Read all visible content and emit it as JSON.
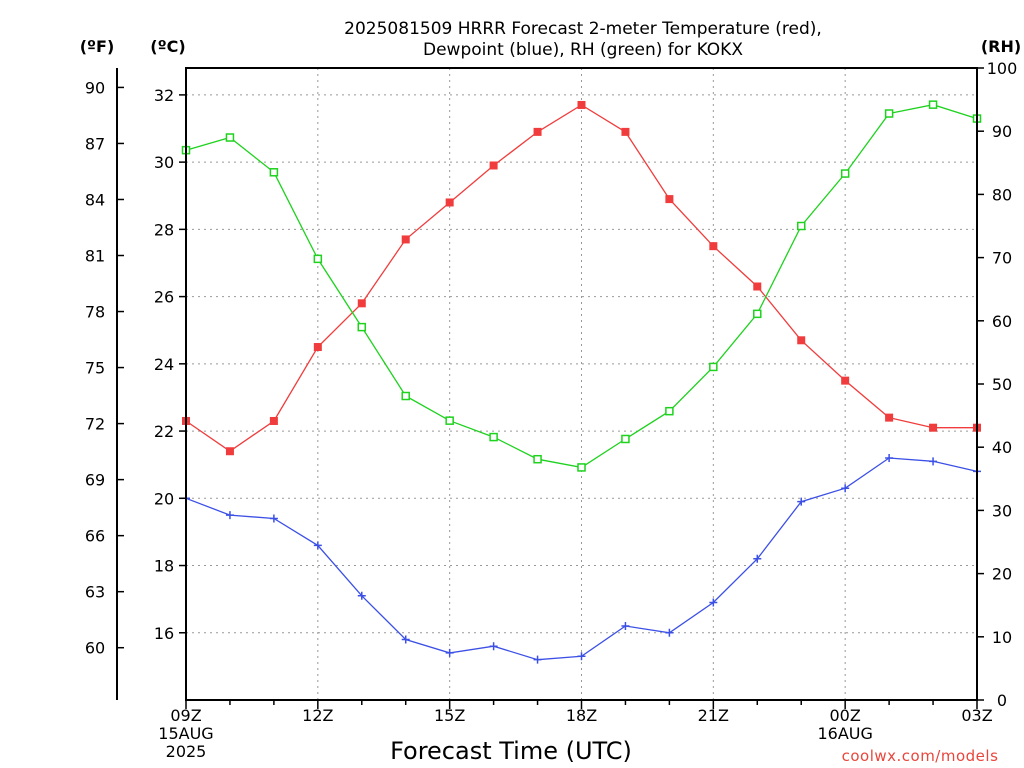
{
  "chart_data": {
    "type": "line",
    "title": "2025081509 HRRR Forecast 2-meter Temperature (red),",
    "subtitle": "Dewpoint (blue), RH (green) for KOKX",
    "xlabel": "Forecast Time (UTC)",
    "credit": "coolwx.com/models",
    "units": {
      "fahrenheit": "(ºF)",
      "celsius": "(ºC)",
      "rh": "(RH)"
    },
    "x_ticks": [
      {
        "hour": 0,
        "lines": [
          "09Z",
          "15AUG",
          "2025"
        ]
      },
      {
        "hour": 3,
        "lines": [
          "12Z"
        ]
      },
      {
        "hour": 6,
        "lines": [
          "15Z"
        ]
      },
      {
        "hour": 9,
        "lines": [
          "18Z"
        ]
      },
      {
        "hour": 12,
        "lines": [
          "21Z"
        ]
      },
      {
        "hour": 15,
        "lines": [
          "00Z",
          "16AUG"
        ]
      },
      {
        "hour": 18,
        "lines": [
          "03Z"
        ]
      }
    ],
    "xlim": [
      0,
      18
    ],
    "celsius_axis": {
      "ylim": [
        14,
        32.8
      ],
      "ticks": [
        16,
        18,
        20,
        22,
        24,
        26,
        28,
        30,
        32
      ]
    },
    "fahrenheit_axis": {
      "ticks": [
        60,
        63,
        66,
        69,
        72,
        75,
        78,
        81,
        84,
        87,
        90
      ]
    },
    "rh_axis": {
      "ylim": [
        0,
        100
      ],
      "ticks": [
        0,
        10,
        20,
        30,
        40,
        50,
        60,
        70,
        80,
        90,
        100
      ]
    },
    "series": [
      {
        "name": "Temperature",
        "axis": "celsius",
        "color": "#f03c3c",
        "marker": "filled-square",
        "x": [
          0,
          1,
          2,
          3,
          4,
          5,
          6,
          7,
          8,
          9,
          10,
          11,
          12,
          13,
          14,
          15,
          16,
          17,
          18
        ],
        "values": [
          22.3,
          21.4,
          22.3,
          24.5,
          25.8,
          27.7,
          28.8,
          29.9,
          30.9,
          31.7,
          30.9,
          28.9,
          27.5,
          26.3,
          24.7,
          23.5,
          22.4,
          22.1,
          22.1
        ]
      },
      {
        "name": "Dewpoint",
        "axis": "celsius",
        "color": "#3c50e6",
        "marker": "plus",
        "x": [
          0,
          1,
          2,
          3,
          4,
          5,
          6,
          7,
          8,
          9,
          10,
          11,
          12,
          13,
          14,
          15,
          16,
          17,
          18
        ],
        "values": [
          20.0,
          19.5,
          19.4,
          18.6,
          17.1,
          15.8,
          15.4,
          15.6,
          15.2,
          15.3,
          16.2,
          16.0,
          16.9,
          18.2,
          19.9,
          20.3,
          21.2,
          21.1,
          20.8
        ]
      },
      {
        "name": "RH",
        "axis": "rh",
        "color": "#1ed21e",
        "marker": "open-square",
        "x": [
          0,
          1,
          2,
          3,
          4,
          5,
          6,
          7,
          8,
          9,
          10,
          11,
          12,
          13,
          14,
          15,
          16,
          17,
          18
        ],
        "values": [
          87,
          89,
          83.5,
          69.8,
          59,
          48.1,
          44.2,
          41.6,
          38.1,
          36.8,
          41.3,
          45.7,
          52.7,
          61.1,
          75,
          83.3,
          92.8,
          94.2,
          92
        ]
      }
    ]
  }
}
